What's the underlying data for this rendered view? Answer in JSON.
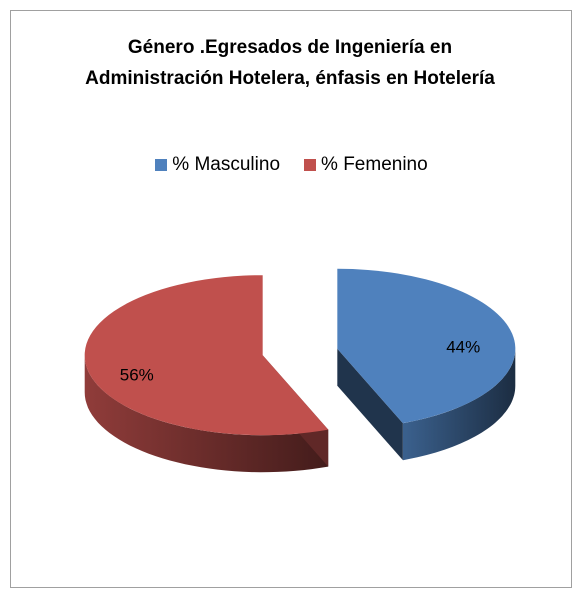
{
  "chart_data": {
    "type": "pie",
    "title": "Género .Egresados de Ingeniería en Administración Hotelera, énfasis en Hotelería",
    "series": [
      {
        "name": "% Masculino",
        "color": "#4f81bd",
        "values": [
          44
        ],
        "value_labels": [
          "44%"
        ]
      },
      {
        "name": "% Femenino",
        "color": "#c0504d",
        "values": [
          56
        ],
        "value_labels": [
          "56%"
        ]
      }
    ],
    "legend": "top"
  }
}
